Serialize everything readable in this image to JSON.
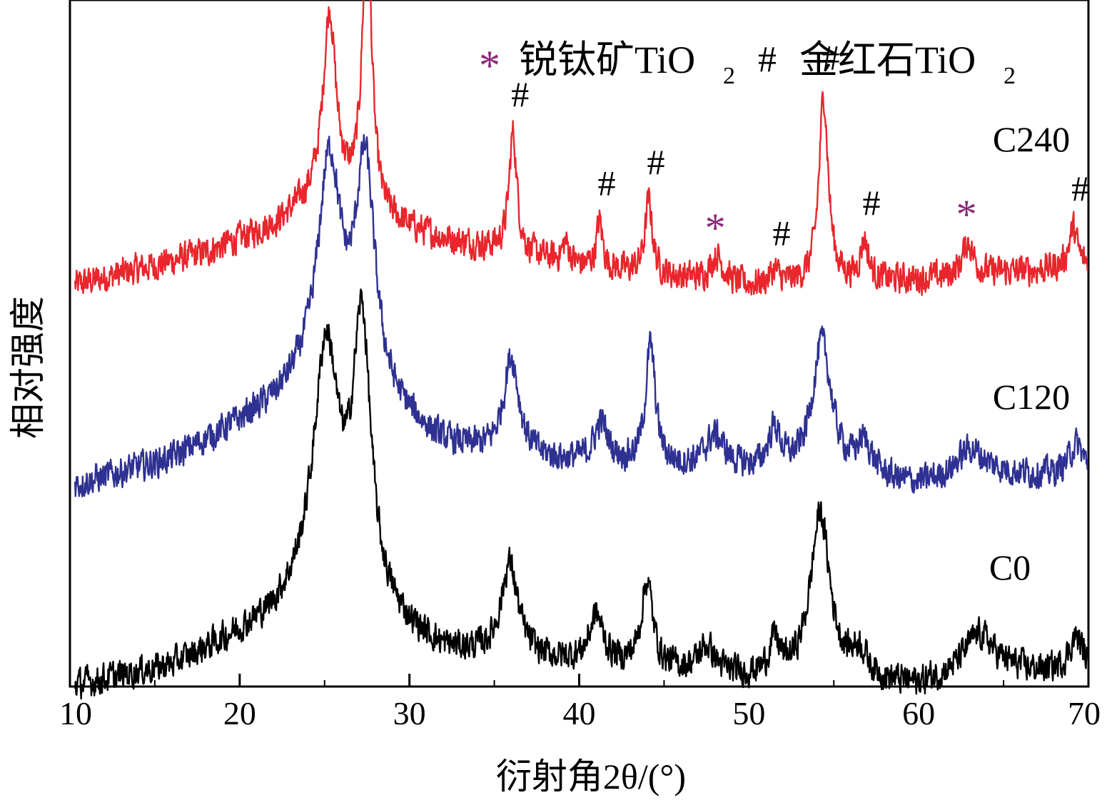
{
  "chart_data": {
    "type": "line",
    "title": "",
    "xlabel": "衍射角2θ/(°)",
    "ylabel": "相对强度",
    "xlim": [
      10,
      70
    ],
    "xticks": [
      "10",
      "20",
      "30",
      "40",
      "50",
      "60",
      "70"
    ],
    "y_ticks_shown": false,
    "grid": false,
    "legend": {
      "placement": "top-right",
      "entries": [
        {
          "symbol": "*",
          "label": "锐钛矿TiO",
          "subscript": "2",
          "color": "#8b2a7a"
        },
        {
          "symbol": "#",
          "label": "金红石TiO",
          "subscript": "2",
          "color": "#000000"
        }
      ]
    },
    "series": [
      {
        "name": "C240",
        "color": "#e8262c",
        "baseline": 0.3,
        "background": [
          [
            10,
            0.0
          ],
          [
            18,
            0.05
          ],
          [
            22,
            0.09
          ],
          [
            25,
            0.14
          ],
          [
            28,
            0.1
          ],
          [
            32,
            0.07
          ],
          [
            36,
            0.05
          ],
          [
            40,
            0.03
          ],
          [
            50,
            0.0
          ],
          [
            60,
            0.01
          ],
          [
            70,
            0.03
          ]
        ],
        "peaks": [
          {
            "x": 25.3,
            "h": 0.27,
            "w": 0.45,
            "marker": "*"
          },
          {
            "x": 27.5,
            "h": 0.44,
            "w": 0.33,
            "marker": "#"
          },
          {
            "x": 36.1,
            "h": 0.18,
            "w": 0.28,
            "marker": "#"
          },
          {
            "x": 39.2,
            "h": 0.03,
            "w": 0.25,
            "marker": ""
          },
          {
            "x": 41.2,
            "h": 0.07,
            "w": 0.22,
            "marker": "#"
          },
          {
            "x": 44.1,
            "h": 0.11,
            "w": 0.26,
            "marker": "#"
          },
          {
            "x": 48.1,
            "h": 0.04,
            "w": 0.45,
            "marker": "*"
          },
          {
            "x": 51.5,
            "h": 0.02,
            "w": 0.3,
            "marker": "#"
          },
          {
            "x": 54.4,
            "h": 0.28,
            "w": 0.33,
            "marker": "#"
          },
          {
            "x": 56.8,
            "h": 0.06,
            "w": 0.28,
            "marker": "#"
          },
          {
            "x": 62.9,
            "h": 0.05,
            "w": 0.4,
            "marker": "*"
          },
          {
            "x": 69.1,
            "h": 0.06,
            "w": 0.3,
            "marker": "#"
          }
        ],
        "noise": 0.025
      },
      {
        "name": "C120",
        "color": "#2e3191",
        "baseline": 0.0,
        "background": [
          [
            10,
            0.0
          ],
          [
            16,
            0.04
          ],
          [
            22,
            0.12
          ],
          [
            25,
            0.18
          ],
          [
            28,
            0.12
          ],
          [
            32,
            0.06
          ],
          [
            36,
            0.04
          ],
          [
            42,
            0.03
          ],
          [
            50,
            0.02
          ],
          [
            60,
            0.0
          ],
          [
            64,
            0.02
          ],
          [
            70,
            0.01
          ]
        ],
        "peaks": [
          {
            "x": 25.3,
            "h": 0.3,
            "w": 0.8,
            "marker": ""
          },
          {
            "x": 27.4,
            "h": 0.34,
            "w": 0.7,
            "marker": ""
          },
          {
            "x": 36.0,
            "h": 0.15,
            "w": 0.55,
            "marker": ""
          },
          {
            "x": 41.3,
            "h": 0.06,
            "w": 0.5,
            "marker": ""
          },
          {
            "x": 44.2,
            "h": 0.18,
            "w": 0.35,
            "marker": ""
          },
          {
            "x": 48.0,
            "h": 0.05,
            "w": 0.7,
            "marker": ""
          },
          {
            "x": 51.5,
            "h": 0.06,
            "w": 0.45,
            "marker": ""
          },
          {
            "x": 54.3,
            "h": 0.2,
            "w": 0.7,
            "marker": ""
          },
          {
            "x": 56.8,
            "h": 0.05,
            "w": 0.6,
            "marker": ""
          },
          {
            "x": 63.0,
            "h": 0.04,
            "w": 0.9,
            "marker": ""
          },
          {
            "x": 69.3,
            "h": 0.05,
            "w": 0.6,
            "marker": ""
          }
        ],
        "noise": 0.025
      },
      {
        "name": "C0",
        "color": "#000000",
        "baseline": -0.3,
        "background": [
          [
            10,
            0.0
          ],
          [
            16,
            0.03
          ],
          [
            22,
            0.1
          ],
          [
            25,
            0.16
          ],
          [
            28,
            0.1
          ],
          [
            32,
            0.05
          ],
          [
            36,
            0.04
          ],
          [
            42,
            0.03
          ],
          [
            50,
            0.01
          ],
          [
            60,
            0.0
          ],
          [
            64,
            0.03
          ],
          [
            70,
            0.01
          ]
        ],
        "peaks": [
          {
            "x": 25.1,
            "h": 0.34,
            "w": 0.9,
            "marker": ""
          },
          {
            "x": 27.2,
            "h": 0.41,
            "w": 0.65,
            "marker": ""
          },
          {
            "x": 35.9,
            "h": 0.14,
            "w": 0.6,
            "marker": ""
          },
          {
            "x": 41.0,
            "h": 0.07,
            "w": 0.5,
            "marker": ""
          },
          {
            "x": 44.0,
            "h": 0.13,
            "w": 0.4,
            "marker": ""
          },
          {
            "x": 47.5,
            "h": 0.04,
            "w": 0.6,
            "marker": ""
          },
          {
            "x": 51.5,
            "h": 0.05,
            "w": 0.4,
            "marker": ""
          },
          {
            "x": 54.2,
            "h": 0.25,
            "w": 0.7,
            "marker": ""
          },
          {
            "x": 56.5,
            "h": 0.04,
            "w": 0.6,
            "marker": ""
          },
          {
            "x": 63.5,
            "h": 0.05,
            "w": 1.0,
            "marker": ""
          },
          {
            "x": 69.3,
            "h": 0.06,
            "w": 0.6,
            "marker": ""
          }
        ],
        "noise": 0.025
      }
    ]
  }
}
